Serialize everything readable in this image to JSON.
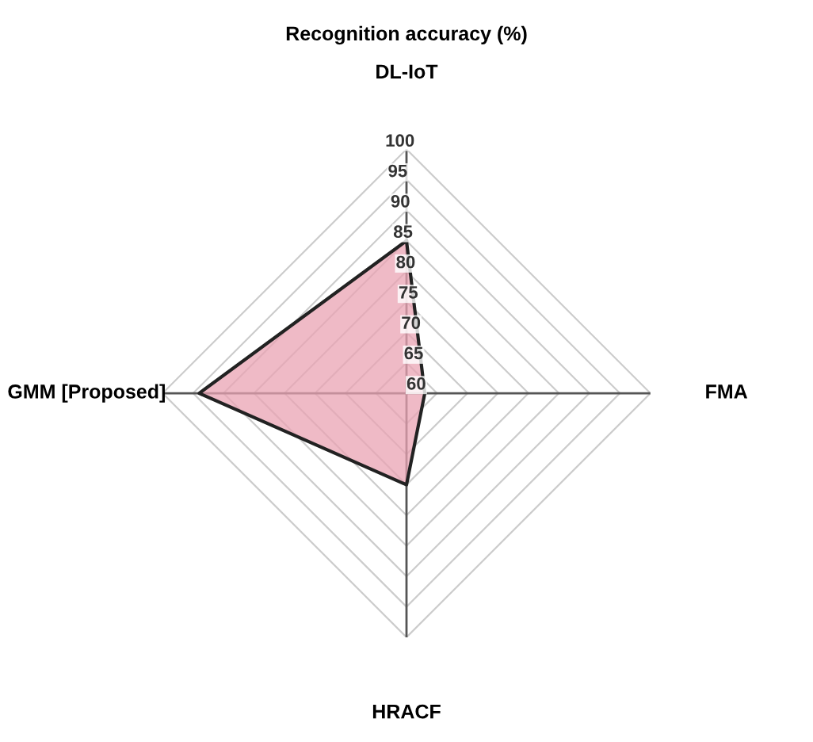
{
  "chart_data": {
    "type": "radar",
    "title": "Recognition accuracy (%)",
    "categories": [
      "DL-IoT",
      "FMA",
      "HRACF",
      "GMM [Proposed]"
    ],
    "series": [
      {
        "color": "#eaa3b3",
        "values": [
          85,
          63,
          75,
          94
        ]
      }
    ],
    "ylim": [
      60,
      100
    ],
    "yticks": [
      60,
      65,
      70,
      75,
      80,
      85,
      90,
      95,
      100
    ],
    "grid": true
  }
}
